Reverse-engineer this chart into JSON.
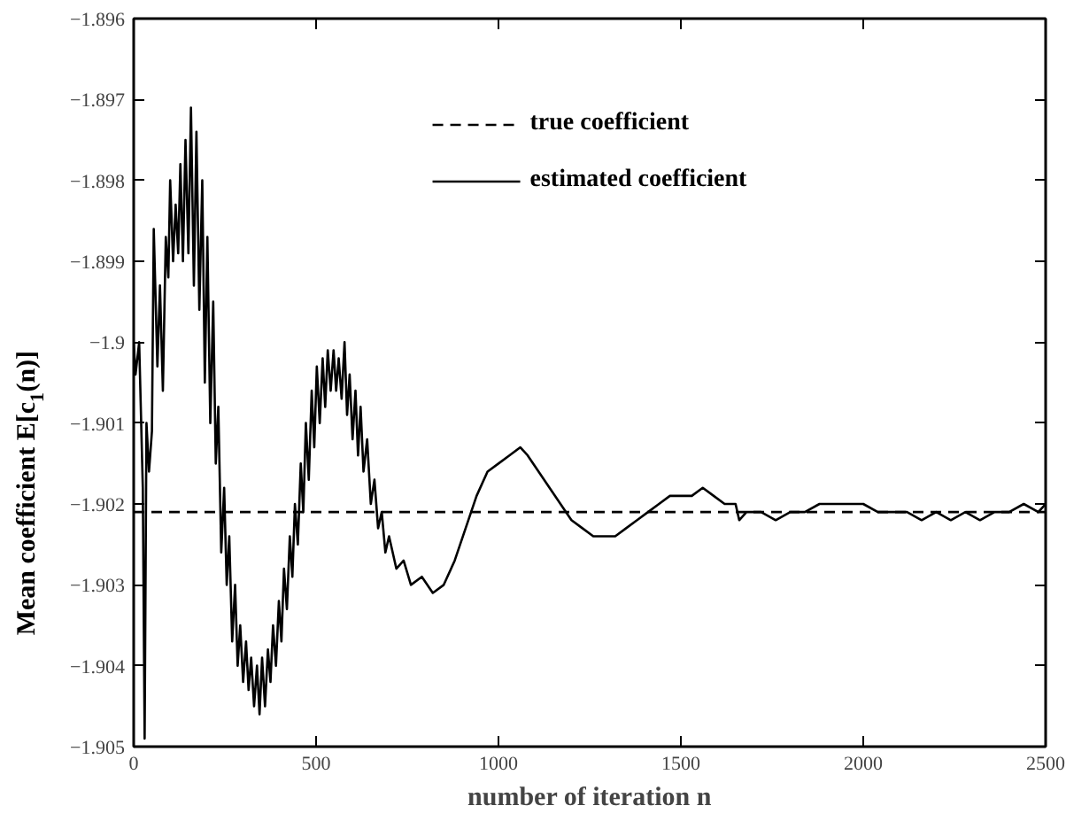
{
  "chart_data": {
    "type": "line",
    "xlabel": "number of iteration n",
    "ylabel": "Mean coefficient E[c$_{1}$(n)]",
    "xlim": [
      0,
      2500
    ],
    "ylim": [
      -1.905,
      -1.896
    ],
    "xticks": [
      0,
      500,
      1000,
      1500,
      2000,
      2500
    ],
    "yticks": [
      {
        "value": -1.905,
        "label": "−1.905"
      },
      {
        "value": -1.904,
        "label": "−1.904"
      },
      {
        "value": -1.903,
        "label": "−1.903"
      },
      {
        "value": -1.902,
        "label": "−1.902"
      },
      {
        "value": -1.901,
        "label": "−1.901"
      },
      {
        "value": -1.9,
        "label": "−1.9"
      },
      {
        "value": -1.899,
        "label": "−1.899"
      },
      {
        "value": -1.898,
        "label": "−1.898"
      },
      {
        "value": -1.897,
        "label": "−1.897"
      },
      {
        "value": -1.896,
        "label": "−1.896"
      }
    ],
    "grid": false,
    "legend": "top",
    "marker": "none",
    "series": [
      {
        "name": "true coefficient",
        "color": "#000000",
        "line_style": "dashed",
        "x": [
          0,
          2500
        ],
        "values": [
          -1.9021,
          -1.9021
        ]
      },
      {
        "name": "estimated coefficient",
        "color": "#000000",
        "line_style": "solid",
        "x": [
          0,
          5,
          15,
          25,
          30,
          35,
          42,
          50,
          55,
          65,
          72,
          80,
          88,
          95,
          100,
          108,
          115,
          122,
          128,
          135,
          142,
          150,
          157,
          165,
          172,
          180,
          188,
          195,
          202,
          210,
          218,
          225,
          232,
          240,
          248,
          255,
          262,
          270,
          278,
          285,
          292,
          300,
          308,
          315,
          322,
          330,
          338,
          345,
          352,
          360,
          368,
          375,
          382,
          390,
          398,
          405,
          412,
          420,
          428,
          435,
          442,
          450,
          458,
          465,
          472,
          480,
          488,
          495,
          502,
          510,
          518,
          525,
          532,
          540,
          548,
          555,
          562,
          570,
          578,
          585,
          592,
          600,
          608,
          615,
          622,
          630,
          640,
          650,
          660,
          670,
          680,
          690,
          700,
          720,
          740,
          760,
          790,
          820,
          850,
          880,
          910,
          940,
          970,
          1000,
          1030,
          1060,
          1080,
          1110,
          1140,
          1170,
          1200,
          1230,
          1260,
          1290,
          1320,
          1350,
          1380,
          1410,
          1440,
          1470,
          1500,
          1530,
          1560,
          1590,
          1620,
          1650,
          1660,
          1680,
          1720,
          1760,
          1800,
          1840,
          1880,
          1920,
          1960,
          2000,
          2040,
          2080,
          2120,
          2160,
          2200,
          2240,
          2280,
          2320,
          2360,
          2400,
          2440,
          2480,
          2500
        ],
        "values": [
          -1.9,
          -1.9004,
          -1.9,
          -1.9018,
          -1.9049,
          -1.901,
          -1.9016,
          -1.9011,
          -1.8986,
          -1.9003,
          -1.8993,
          -1.9006,
          -1.8987,
          -1.8992,
          -1.898,
          -1.899,
          -1.8983,
          -1.8989,
          -1.8978,
          -1.899,
          -1.8975,
          -1.8989,
          -1.8971,
          -1.8993,
          -1.8974,
          -1.8996,
          -1.898,
          -1.9005,
          -1.8987,
          -1.901,
          -1.8995,
          -1.9015,
          -1.9008,
          -1.9026,
          -1.9018,
          -1.903,
          -1.9024,
          -1.9037,
          -1.903,
          -1.904,
          -1.9035,
          -1.9042,
          -1.9037,
          -1.9043,
          -1.9039,
          -1.9045,
          -1.904,
          -1.9046,
          -1.9039,
          -1.9045,
          -1.9038,
          -1.9042,
          -1.9035,
          -1.904,
          -1.9032,
          -1.9037,
          -1.9028,
          -1.9033,
          -1.9024,
          -1.9029,
          -1.902,
          -1.9025,
          -1.9015,
          -1.9021,
          -1.901,
          -1.9017,
          -1.9006,
          -1.9013,
          -1.9003,
          -1.901,
          -1.9002,
          -1.9008,
          -1.9001,
          -1.9006,
          -1.9001,
          -1.9006,
          -1.9002,
          -1.9007,
          -1.9,
          -1.9009,
          -1.9004,
          -1.9012,
          -1.9006,
          -1.9014,
          -1.9008,
          -1.9016,
          -1.9012,
          -1.902,
          -1.9017,
          -1.9023,
          -1.9021,
          -1.9026,
          -1.9024,
          -1.9028,
          -1.9027,
          -1.903,
          -1.9029,
          -1.9031,
          -1.903,
          -1.9027,
          -1.9023,
          -1.9019,
          -1.9016,
          -1.9015,
          -1.9014,
          -1.9013,
          -1.9014,
          -1.9016,
          -1.9018,
          -1.902,
          -1.9022,
          -1.9023,
          -1.9024,
          -1.9024,
          -1.9024,
          -1.9023,
          -1.9022,
          -1.9021,
          -1.902,
          -1.9019,
          -1.9019,
          -1.9019,
          -1.9018,
          -1.9019,
          -1.902,
          -1.902,
          -1.9022,
          -1.9021,
          -1.9021,
          -1.9022,
          -1.9021,
          -1.9021,
          -1.902,
          -1.902,
          -1.902,
          -1.902,
          -1.9021,
          -1.9021,
          -1.9021,
          -1.9022,
          -1.9021,
          -1.9022,
          -1.9021,
          -1.9022,
          -1.9021,
          -1.9021,
          -1.902,
          -1.9021,
          -1.902
        ]
      }
    ]
  }
}
